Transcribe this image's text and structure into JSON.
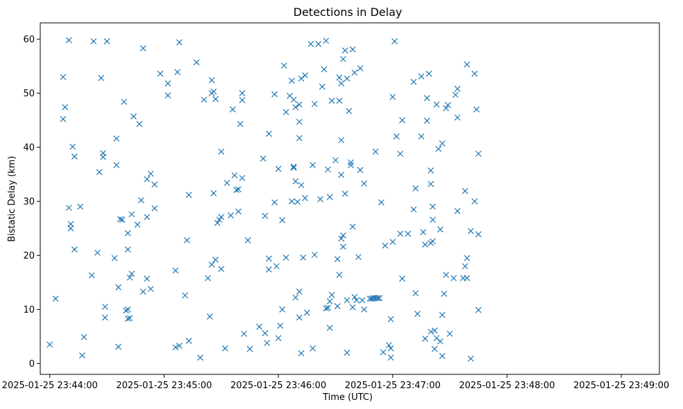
{
  "chart_data": {
    "type": "scatter",
    "title": "Detections in Delay",
    "xlabel": "Time (UTC)",
    "ylabel": "Bistatic Delay (km)",
    "marker": "x",
    "marker_color": "#1f77b4",
    "grid": false,
    "legend": "none",
    "x_axis_kind": "time",
    "xlim": [
      "2025-01-25 23:43:55",
      "2025-01-25 23:49:20"
    ],
    "ylim": [
      -2,
      63
    ],
    "x_ticks": [
      {
        "value": "2025-01-25 23:44:00",
        "label": "2025-01-25 23:44:00"
      },
      {
        "value": "2025-01-25 23:45:00",
        "label": "2025-01-25 23:45:00"
      },
      {
        "value": "2025-01-25 23:46:00",
        "label": "2025-01-25 23:46:00"
      },
      {
        "value": "2025-01-25 23:47:00",
        "label": "2025-01-25 23:47:00"
      },
      {
        "value": "2025-01-25 23:48:00",
        "label": "2025-01-25 23:48:00"
      },
      {
        "value": "2025-01-25 23:49:00",
        "label": "2025-01-25 23:49:00"
      }
    ],
    "y_ticks": [
      0,
      10,
      20,
      30,
      40,
      50,
      60
    ],
    "series": [
      {
        "points": [
          [
            "23:44:00",
            3.5
          ],
          [
            "23:44:03",
            12
          ],
          [
            "23:44:07",
            53
          ],
          [
            "23:44:07",
            45.2
          ],
          [
            "23:44:08",
            47.4
          ],
          [
            "23:44:10",
            59.8
          ],
          [
            "23:44:10",
            28.8
          ],
          [
            "23:44:11",
            25.8
          ],
          [
            "23:44:11",
            25
          ],
          [
            "23:44:12",
            40.1
          ],
          [
            "23:44:13",
            21.1
          ],
          [
            "23:44:13",
            38.3
          ],
          [
            "23:44:16",
            29
          ],
          [
            "23:44:17",
            1.5
          ],
          [
            "23:44:18",
            4.9
          ],
          [
            "23:44:22",
            16.3
          ],
          [
            "23:44:23",
            59.6
          ],
          [
            "23:44:25",
            20.5
          ],
          [
            "23:44:26",
            35.4
          ],
          [
            "23:44:27",
            52.8
          ],
          [
            "23:44:28",
            38.9
          ],
          [
            "23:44:28",
            38.2
          ],
          [
            "23:44:29",
            10.5
          ],
          [
            "23:44:29",
            8.5
          ],
          [
            "23:44:30",
            59.6
          ],
          [
            "23:44:34",
            19.5
          ],
          [
            "23:44:35",
            41.6
          ],
          [
            "23:44:35",
            36.7
          ],
          [
            "23:44:36",
            14.1
          ],
          [
            "23:44:36",
            3.1
          ],
          [
            "23:44:37",
            26.7
          ],
          [
            "23:44:38",
            26.6
          ],
          [
            "23:44:39",
            48.4
          ],
          [
            "23:44:40",
            9.8
          ],
          [
            "23:44:41",
            24.1
          ],
          [
            "23:44:41",
            21.1
          ],
          [
            "23:44:41",
            10
          ],
          [
            "23:44:41",
            8.3
          ],
          [
            "23:44:42",
            15.9
          ],
          [
            "23:44:42",
            8.4
          ],
          [
            "23:44:43",
            16.6
          ],
          [
            "23:44:43",
            27.6
          ],
          [
            "23:44:44",
            45.7
          ],
          [
            "23:44:46",
            25.7
          ],
          [
            "23:44:47",
            44.3
          ],
          [
            "23:44:48",
            30.2
          ],
          [
            "23:44:49",
            58.3
          ],
          [
            "23:44:49",
            13.3
          ],
          [
            "23:44:51",
            27.1
          ],
          [
            "23:44:51",
            15.7
          ],
          [
            "23:44:51",
            34.1
          ],
          [
            "23:44:53",
            35.1
          ],
          [
            "23:44:53",
            13.8
          ],
          [
            "23:44:55",
            33.1
          ],
          [
            "23:44:55",
            28.7
          ],
          [
            "23:44:58",
            53.6
          ],
          [
            "23:45:02",
            51.8
          ],
          [
            "23:45:02",
            49.6
          ],
          [
            "23:45:06",
            17.2
          ],
          [
            "23:45:06",
            3
          ],
          [
            "23:45:07",
            53.9
          ],
          [
            "23:45:08",
            3.3
          ],
          [
            "23:45:08",
            59.4
          ],
          [
            "23:45:11",
            12.6
          ],
          [
            "23:45:12",
            22.8
          ],
          [
            "23:45:13",
            4.2
          ],
          [
            "23:45:13",
            31.2
          ],
          [
            "23:45:17",
            55.7
          ],
          [
            "23:45:19",
            1.1
          ],
          [
            "23:45:21",
            48.8
          ],
          [
            "23:45:23",
            15.8
          ],
          [
            "23:45:24",
            8.7
          ],
          [
            "23:45:25",
            50
          ],
          [
            "23:45:25",
            52.4
          ],
          [
            "23:45:25",
            18.3
          ],
          [
            "23:45:26",
            50.3
          ],
          [
            "23:45:26",
            31.5
          ],
          [
            "23:45:27",
            48.9
          ],
          [
            "23:45:27",
            19.2
          ],
          [
            "23:45:28",
            26
          ],
          [
            "23:45:29",
            26.6
          ],
          [
            "23:45:30",
            27.1
          ],
          [
            "23:45:30",
            17.5
          ],
          [
            "23:45:30",
            39.2
          ],
          [
            "23:45:32",
            2.8
          ],
          [
            "23:45:33",
            33.4
          ],
          [
            "23:45:35",
            27.4
          ],
          [
            "23:45:36",
            47
          ],
          [
            "23:45:37",
            34.8
          ],
          [
            "23:45:38",
            32.1
          ],
          [
            "23:45:39",
            32.2
          ],
          [
            "23:45:39",
            28.1
          ],
          [
            "23:45:40",
            44.3
          ],
          [
            "23:45:41",
            50
          ],
          [
            "23:45:41",
            34.3
          ],
          [
            "23:45:41",
            48.7
          ],
          [
            "23:45:42",
            5.5
          ],
          [
            "23:45:44",
            22.8
          ],
          [
            "23:45:45",
            2.7
          ],
          [
            "23:45:50",
            6.8
          ],
          [
            "23:45:52",
            37.9
          ],
          [
            "23:45:53",
            5.6
          ],
          [
            "23:45:53",
            27.3
          ],
          [
            "23:45:54",
            3.8
          ],
          [
            "23:45:55",
            17.4
          ],
          [
            "23:45:55",
            19.4
          ],
          [
            "23:45:55",
            42.5
          ],
          [
            "23:45:58",
            49.8
          ],
          [
            "23:45:58",
            29.8
          ],
          [
            "23:45:59",
            18
          ],
          [
            "23:46:00",
            36
          ],
          [
            "23:46:00",
            4.7
          ],
          [
            "23:46:01",
            7
          ],
          [
            "23:46:02",
            10
          ],
          [
            "23:46:02",
            26.5
          ],
          [
            "23:46:03",
            55.1
          ],
          [
            "23:46:04",
            46.5
          ],
          [
            "23:46:04",
            19.6
          ],
          [
            "23:46:06",
            49.5
          ],
          [
            "23:46:07",
            52.3
          ],
          [
            "23:46:07",
            30
          ],
          [
            "23:46:08",
            48.8
          ],
          [
            "23:46:08",
            36.4
          ],
          [
            "23:46:08",
            36.2
          ],
          [
            "23:46:09",
            47.4
          ],
          [
            "23:46:09",
            12.2
          ],
          [
            "23:46:09",
            33.7
          ],
          [
            "23:46:10",
            29.9
          ],
          [
            "23:46:11",
            41.7
          ],
          [
            "23:46:11",
            44.7
          ],
          [
            "23:46:11",
            47.9
          ],
          [
            "23:46:11",
            8.5
          ],
          [
            "23:46:11",
            13.3
          ],
          [
            "23:46:12",
            1.9
          ],
          [
            "23:46:12",
            52.7
          ],
          [
            "23:46:12",
            33
          ],
          [
            "23:46:13",
            19.6
          ],
          [
            "23:46:14",
            53.3
          ],
          [
            "23:46:14",
            30.6
          ],
          [
            "23:46:15",
            9.4
          ],
          [
            "23:46:17",
            59.1
          ],
          [
            "23:46:18",
            2.8
          ],
          [
            "23:46:18",
            36.7
          ],
          [
            "23:46:19",
            20.1
          ],
          [
            "23:46:19",
            48
          ],
          [
            "23:46:21",
            59.1
          ],
          [
            "23:46:22",
            30.4
          ],
          [
            "23:46:23",
            51.2
          ],
          [
            "23:46:24",
            54.4
          ],
          [
            "23:46:25",
            59.7
          ],
          [
            "23:46:25",
            10.2
          ],
          [
            "23:46:26",
            10.3
          ],
          [
            "23:46:26",
            35.9
          ],
          [
            "23:46:27",
            11.5
          ],
          [
            "23:46:27",
            6.6
          ],
          [
            "23:46:27",
            30.8
          ],
          [
            "23:46:28",
            12.7
          ],
          [
            "23:46:28",
            48.6
          ],
          [
            "23:46:30",
            37.6
          ],
          [
            "23:46:31",
            19.3
          ],
          [
            "23:46:31",
            10.6
          ],
          [
            "23:46:32",
            52.9
          ],
          [
            "23:46:32",
            16.4
          ],
          [
            "23:46:32",
            48.6
          ],
          [
            "23:46:33",
            51.8
          ],
          [
            "23:46:33",
            34.9
          ],
          [
            "23:46:33",
            41.3
          ],
          [
            "23:46:33",
            23.1
          ],
          [
            "23:46:34",
            56.3
          ],
          [
            "23:46:34",
            23.7
          ],
          [
            "23:46:34",
            21.6
          ],
          [
            "23:46:35",
            57.9
          ],
          [
            "23:46:35",
            31.4
          ],
          [
            "23:46:36",
            52.7
          ],
          [
            "23:46:36",
            11.7
          ],
          [
            "23:46:36",
            2
          ],
          [
            "23:46:37",
            46.7
          ],
          [
            "23:46:38",
            37.2
          ],
          [
            "23:46:38",
            36.7
          ],
          [
            "23:46:39",
            58.1
          ],
          [
            "23:46:39",
            25.3
          ],
          [
            "23:46:39",
            10.4
          ],
          [
            "23:46:40",
            12.3
          ],
          [
            "23:46:40",
            53.8
          ],
          [
            "23:46:41",
            11.7
          ],
          [
            "23:46:42",
            19.7
          ],
          [
            "23:46:43",
            54.6
          ],
          [
            "23:46:43",
            35.8
          ],
          [
            "23:46:44",
            11.7
          ],
          [
            "23:46:45",
            10
          ],
          [
            "23:46:45",
            33.3
          ],
          [
            "23:46:48",
            12
          ],
          [
            "23:46:49",
            12
          ],
          [
            "23:46:49",
            12
          ],
          [
            "23:46:50",
            12.1
          ],
          [
            "23:46:50",
            12.1
          ],
          [
            "23:46:51",
            39.2
          ],
          [
            "23:46:51",
            12.1
          ],
          [
            "23:46:52",
            12.1
          ],
          [
            "23:46:52",
            12.1
          ],
          [
            "23:46:53",
            12.1
          ],
          [
            "23:46:53",
            12.1
          ],
          [
            "23:46:54",
            29.8
          ],
          [
            "23:46:55",
            2.1
          ],
          [
            "23:46:56",
            21.8
          ],
          [
            "23:46:58",
            3.4
          ],
          [
            "23:46:59",
            1.1
          ],
          [
            "23:46:59",
            2.8
          ],
          [
            "23:46:59",
            8.2
          ],
          [
            "23:47:00",
            22.5
          ],
          [
            "23:47:00",
            49.3
          ],
          [
            "23:47:01",
            59.6
          ],
          [
            "23:47:02",
            42
          ],
          [
            "23:47:04",
            38.8
          ],
          [
            "23:47:04",
            24
          ],
          [
            "23:47:05",
            15.7
          ],
          [
            "23:47:05",
            45
          ],
          [
            "23:47:08",
            24
          ],
          [
            "23:47:11",
            52.1
          ],
          [
            "23:47:11",
            28.5
          ],
          [
            "23:47:12",
            13
          ],
          [
            "23:47:12",
            32.4
          ],
          [
            "23:47:13",
            9.2
          ],
          [
            "23:47:15",
            53.1
          ],
          [
            "23:47:15",
            42
          ],
          [
            "23:47:16",
            24.3
          ],
          [
            "23:47:17",
            4.6
          ],
          [
            "23:47:17",
            22
          ],
          [
            "23:47:18",
            49.1
          ],
          [
            "23:47:18",
            44.9
          ],
          [
            "23:47:19",
            53.6
          ],
          [
            "23:47:20",
            22.3
          ],
          [
            "23:47:20",
            33.2
          ],
          [
            "23:47:20",
            5.9
          ],
          [
            "23:47:20",
            35.7
          ],
          [
            "23:47:21",
            26.6
          ],
          [
            "23:47:21",
            22.6
          ],
          [
            "23:47:21",
            29
          ],
          [
            "23:47:22",
            2.7
          ],
          [
            "23:47:22",
            6.1
          ],
          [
            "23:47:23",
            4.7
          ],
          [
            "23:47:23",
            47.9
          ],
          [
            "23:47:24",
            39.7
          ],
          [
            "23:47:25",
            24.8
          ],
          [
            "23:47:25",
            4.1
          ],
          [
            "23:47:26",
            9
          ],
          [
            "23:47:26",
            40.7
          ],
          [
            "23:47:26",
            1.4
          ],
          [
            "23:47:27",
            12.9
          ],
          [
            "23:47:28",
            16.4
          ],
          [
            "23:47:28",
            47.2
          ],
          [
            "23:47:29",
            47.8
          ],
          [
            "23:47:30",
            5.5
          ],
          [
            "23:47:32",
            15.8
          ],
          [
            "23:47:33",
            49.7
          ],
          [
            "23:47:34",
            50.8
          ],
          [
            "23:47:34",
            28.2
          ],
          [
            "23:47:34",
            45.5
          ],
          [
            "23:47:37",
            15.8
          ],
          [
            "23:47:38",
            31.9
          ],
          [
            "23:47:38",
            18
          ],
          [
            "23:47:39",
            19.5
          ],
          [
            "23:47:39",
            55.3
          ],
          [
            "23:47:39",
            15.8
          ],
          [
            "23:47:41",
            24.5
          ],
          [
            "23:47:41",
            0.9
          ],
          [
            "23:47:43",
            30
          ],
          [
            "23:47:43",
            53.6
          ],
          [
            "23:47:44",
            47
          ],
          [
            "23:47:45",
            38.8
          ],
          [
            "23:47:45",
            9.9
          ],
          [
            "23:47:45",
            23.9
          ]
        ]
      }
    ]
  }
}
